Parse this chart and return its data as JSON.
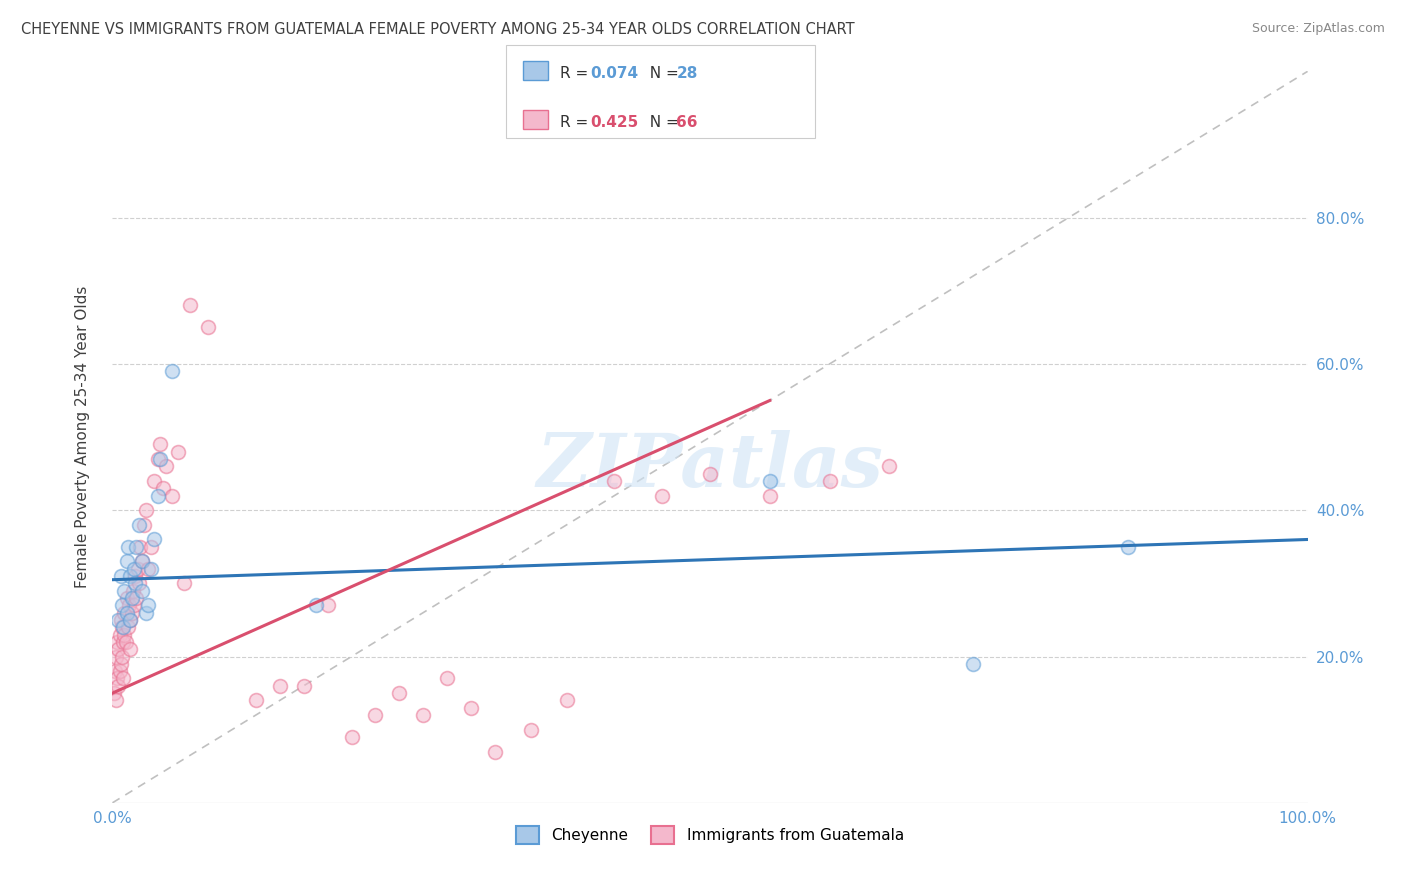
{
  "title": "CHEYENNE VS IMMIGRANTS FROM GUATEMALA FEMALE POVERTY AMONG 25-34 YEAR OLDS CORRELATION CHART",
  "source": "Source: ZipAtlas.com",
  "ylabel": "Female Poverty Among 25-34 Year Olds",
  "cheyenne_color": "#a8c8e8",
  "cheyenne_edge": "#5b9bd5",
  "guatemala_color": "#f4b8cc",
  "guatemala_edge": "#e87090",
  "trend_cheyenne_color": "#2e75b6",
  "trend_guatemala_color": "#d94f6e",
  "diagonal_color": "#c0c0c0",
  "grid_color": "#d0d0d0",
  "title_color": "#404040",
  "source_color": "#888888",
  "axis_label_color": "#404040",
  "tick_label_color": "#5b9bd5",
  "marker_size": 100,
  "marker_alpha": 0.55,
  "marker_lw": 1.2,
  "cheyenne_x": [
    0.005,
    0.007,
    0.008,
    0.009,
    0.01,
    0.012,
    0.012,
    0.013,
    0.015,
    0.015,
    0.016,
    0.018,
    0.019,
    0.02,
    0.022,
    0.025,
    0.025,
    0.028,
    0.03,
    0.032,
    0.035,
    0.038,
    0.04,
    0.05,
    0.17,
    0.55,
    0.72,
    0.85
  ],
  "cheyenne_y": [
    0.25,
    0.31,
    0.27,
    0.24,
    0.29,
    0.33,
    0.26,
    0.35,
    0.31,
    0.25,
    0.28,
    0.32,
    0.3,
    0.35,
    0.38,
    0.33,
    0.29,
    0.26,
    0.27,
    0.32,
    0.36,
    0.42,
    0.47,
    0.59,
    0.27,
    0.44,
    0.19,
    0.35
  ],
  "guatemala_x": [
    0.001,
    0.002,
    0.003,
    0.003,
    0.004,
    0.004,
    0.005,
    0.005,
    0.006,
    0.006,
    0.007,
    0.007,
    0.008,
    0.008,
    0.009,
    0.009,
    0.01,
    0.01,
    0.011,
    0.012,
    0.013,
    0.014,
    0.015,
    0.015,
    0.016,
    0.017,
    0.018,
    0.019,
    0.02,
    0.021,
    0.022,
    0.023,
    0.025,
    0.026,
    0.028,
    0.03,
    0.032,
    0.035,
    0.038,
    0.04,
    0.042,
    0.045,
    0.05,
    0.055,
    0.06,
    0.065,
    0.08,
    0.12,
    0.14,
    0.16,
    0.18,
    0.2,
    0.22,
    0.24,
    0.26,
    0.28,
    0.3,
    0.32,
    0.35,
    0.38,
    0.42,
    0.46,
    0.5,
    0.55,
    0.6,
    0.65
  ],
  "guatemala_y": [
    0.15,
    0.18,
    0.14,
    0.2,
    0.17,
    0.22,
    0.16,
    0.21,
    0.18,
    0.23,
    0.19,
    0.25,
    0.2,
    0.24,
    0.22,
    0.17,
    0.23,
    0.26,
    0.22,
    0.28,
    0.24,
    0.27,
    0.25,
    0.21,
    0.26,
    0.29,
    0.27,
    0.31,
    0.28,
    0.32,
    0.3,
    0.35,
    0.33,
    0.38,
    0.4,
    0.32,
    0.35,
    0.44,
    0.47,
    0.49,
    0.43,
    0.46,
    0.42,
    0.48,
    0.3,
    0.68,
    0.65,
    0.14,
    0.16,
    0.16,
    0.27,
    0.09,
    0.12,
    0.15,
    0.12,
    0.17,
    0.13,
    0.07,
    0.1,
    0.14,
    0.44,
    0.42,
    0.45,
    0.42,
    0.44,
    0.46
  ],
  "cheyenne_trend_x": [
    0.0,
    1.0
  ],
  "cheyenne_trend_y": [
    0.305,
    0.36
  ],
  "guatemala_trend_x": [
    0.0,
    0.55
  ],
  "guatemala_trend_y": [
    0.15,
    0.55
  ],
  "xlim": [
    0.0,
    1.0
  ],
  "ylim": [
    0.0,
    1.0
  ],
  "xtick_positions": [
    0.0,
    0.2,
    0.4,
    0.6,
    0.8,
    1.0
  ],
  "xticklabels_show": {
    "0.0": "0.0%",
    "1.0": "100.0%"
  },
  "ytick_positions": [
    0.2,
    0.4,
    0.6,
    0.8
  ],
  "yticklabels": [
    "20.0%",
    "40.0%",
    "60.0%",
    "80.0%"
  ]
}
